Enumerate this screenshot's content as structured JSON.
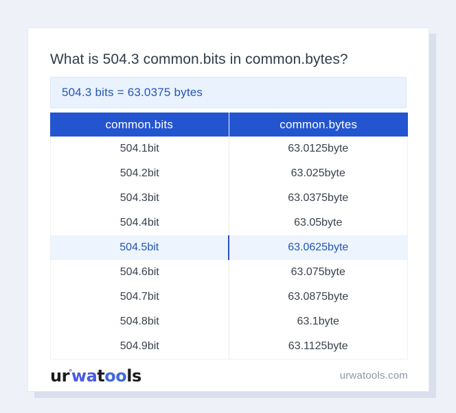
{
  "title": "What is 504.3 common.bits in common.bytes?",
  "result": {
    "text": "504.3 bits = 63.0375 bytes"
  },
  "table": {
    "headers": {
      "bits": "common.bits",
      "bytes": "common.bytes"
    },
    "highlighted_row_index": 4,
    "rows": [
      {
        "bits": "504.1bit",
        "bytes": "63.0125byte"
      },
      {
        "bits": "504.2bit",
        "bytes": "63.025byte"
      },
      {
        "bits": "504.3bit",
        "bytes": "63.0375byte"
      },
      {
        "bits": "504.4bit",
        "bytes": "63.05byte"
      },
      {
        "bits": "504.5bit",
        "bytes": "63.0625byte"
      },
      {
        "bits": "504.6bit",
        "bytes": "63.075byte"
      },
      {
        "bits": "504.7bit",
        "bytes": "63.0875byte"
      },
      {
        "bits": "504.8bit",
        "bytes": "63.1byte"
      },
      {
        "bits": "504.9bit",
        "bytes": "63.1125byte"
      }
    ]
  },
  "footer": {
    "logo": {
      "p1": "ur",
      "degree": "°",
      "p2": "wa",
      "p3": "t",
      "p4": "oo",
      "p5": "ls"
    },
    "site": "urwatools.com"
  },
  "colors": {
    "page_background": "#eef1f7",
    "card_background": "#ffffff",
    "card_shadow": "#d9dfec",
    "header_background": "#2355d0",
    "header_text": "#ffffff",
    "result_background": "#e9f2fd",
    "accent_blue_text": "#2456b4",
    "highlight_row_background": "#edf4fd",
    "highlight_divider": "#2450c0",
    "body_text": "#39414e",
    "title_text": "#303c4a",
    "footer_text": "#8d96a5",
    "logo_blue": "#4a5ce0"
  }
}
